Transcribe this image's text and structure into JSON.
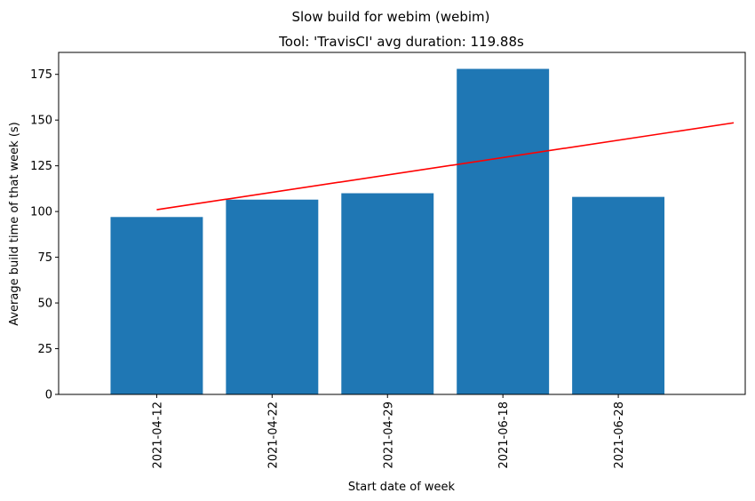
{
  "chart_data": {
    "type": "bar",
    "suptitle": "Slow build for webim (webim)",
    "title": "Tool: 'TravisCI' avg duration: 119.88s",
    "xlabel": "Start date of week",
    "ylabel": "Average build time of that week (s)",
    "categories": [
      "2021-04-12",
      "2021-04-22",
      "2021-04-29",
      "2021-06-18",
      "2021-06-28"
    ],
    "values": [
      97,
      106.5,
      110,
      178,
      108
    ],
    "trend_line": {
      "start": 101,
      "end": 148.5,
      "color": "#ff0000"
    },
    "ylim": [
      0,
      187
    ],
    "yticks": [
      0,
      25,
      50,
      75,
      100,
      125,
      150,
      175
    ],
    "bar_color": "#1f77b4",
    "grid": false,
    "legend": "none"
  }
}
